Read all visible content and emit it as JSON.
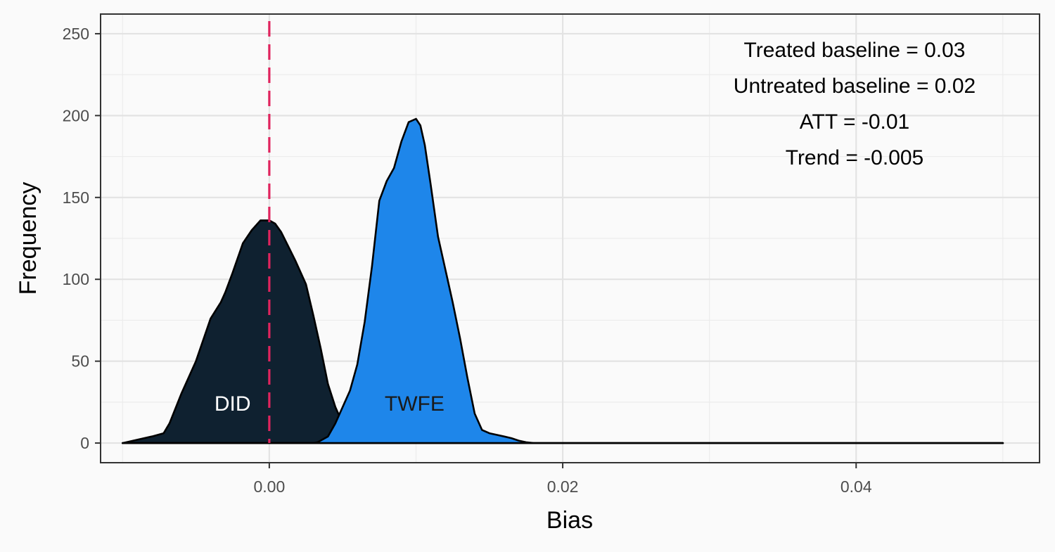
{
  "chart_data": {
    "type": "area",
    "xlabel": "Bias",
    "ylabel": "Frequency",
    "xlim": [
      -0.0115,
      0.0525
    ],
    "ylim": [
      -12,
      262
    ],
    "x_ticks": [
      0.0,
      0.02,
      0.04
    ],
    "x_tick_labels": [
      "0.00",
      "0.02",
      "0.04"
    ],
    "x_minor_ticks": [
      -0.01,
      0.01,
      0.03,
      0.05
    ],
    "y_ticks": [
      0,
      50,
      100,
      150,
      200,
      250
    ],
    "y_tick_labels": [
      "0",
      "50",
      "100",
      "150",
      "200",
      "250"
    ],
    "y_minor_ticks": [
      25,
      75,
      125,
      175,
      225
    ],
    "grid": true,
    "reference_line": {
      "x": 0.0,
      "style": "dashed",
      "color": "#e0245e"
    },
    "annotations": [
      "Treated baseline = 0.03",
      "Untreated baseline = 0.02",
      "ATT = -0.01",
      "Trend = -0.005"
    ],
    "series": [
      {
        "name": "DID",
        "fill": "#0f2130",
        "label_color": "#ffffff",
        "label_at": {
          "x": -0.0025,
          "y": 24
        },
        "x": [
          -0.01,
          -0.009,
          -0.008,
          -0.0072,
          -0.0068,
          -0.006,
          -0.005,
          -0.004,
          -0.0033,
          -0.003,
          -0.0025,
          -0.0018,
          -0.0012,
          -0.0006,
          0.0,
          0.0004,
          0.0008,
          0.0013,
          0.0018,
          0.0025,
          0.003,
          0.0035,
          0.004,
          0.0045,
          0.005,
          0.0055,
          0.006,
          0.0065,
          0.007,
          0.0075,
          0.008,
          0.0085,
          0.009,
          0.0095,
          0.01,
          0.011,
          0.012,
          0.013,
          0.014,
          0.015,
          0.016,
          0.017,
          0.018,
          0.02,
          0.03,
          0.04,
          0.05
        ],
        "values": [
          0,
          2,
          4,
          6,
          12,
          30,
          50,
          76,
          86,
          92,
          104,
          122,
          130,
          136,
          136,
          134,
          129,
          120,
          111,
          97,
          78,
          58,
          36,
          22,
          12,
          7,
          4,
          3,
          2,
          2,
          1,
          1,
          1,
          1,
          1,
          1,
          0,
          0,
          0,
          0,
          0,
          0,
          0,
          0,
          0,
          0,
          0
        ]
      },
      {
        "name": "TWFE",
        "fill": "#1e86ea",
        "label_color": "#1a1a1a",
        "label_at": {
          "x": 0.0099,
          "y": 24
        },
        "x": [
          -0.01,
          0.003,
          0.0033,
          0.004,
          0.0045,
          0.005,
          0.0055,
          0.006,
          0.0065,
          0.007,
          0.0075,
          0.008,
          0.0085,
          0.009,
          0.0095,
          0.01,
          0.0103,
          0.0106,
          0.011,
          0.0115,
          0.012,
          0.0125,
          0.013,
          0.0135,
          0.014,
          0.0145,
          0.015,
          0.0155,
          0.016,
          0.0165,
          0.017,
          0.0175,
          0.018,
          0.019,
          0.02,
          0.03,
          0.04,
          0.05
        ],
        "values": [
          0,
          0,
          0.5,
          4,
          12,
          22,
          32,
          48,
          74,
          108,
          148,
          160,
          168,
          184,
          196,
          198,
          194,
          182,
          158,
          126,
          106,
          86,
          64,
          40,
          18,
          8,
          6,
          5,
          4,
          3,
          1.5,
          0.5,
          0,
          0,
          0,
          0,
          0,
          0
        ]
      }
    ]
  }
}
